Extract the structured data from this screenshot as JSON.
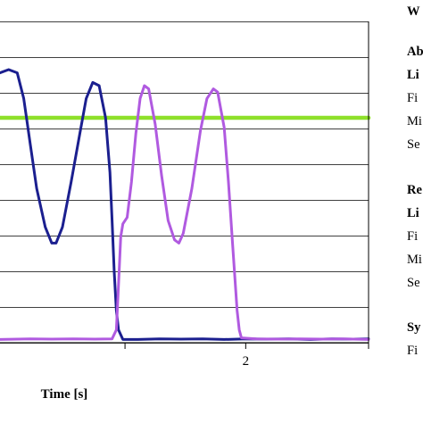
{
  "chart_data": {
    "type": "line",
    "xlabel": "Time [s]",
    "ylabel": "",
    "x_ticks": [
      {
        "label": "2",
        "value": 2
      }
    ],
    "xlim": [
      0.86,
      2.57
    ],
    "ylim": [
      0,
      1.0
    ],
    "grid": true,
    "colors": {
      "series_a": "#1b1f8f",
      "series_b": "#b05ae0",
      "threshold": "#8ee02a",
      "grid": "#000000"
    },
    "series": [
      {
        "color": "#1b1f8f",
        "points": [
          [
            0.86,
            0.84
          ],
          [
            0.9,
            0.85
          ],
          [
            0.94,
            0.84
          ],
          [
            0.97,
            0.76
          ],
          [
            1.0,
            0.62
          ],
          [
            1.03,
            0.48
          ],
          [
            1.07,
            0.36
          ],
          [
            1.1,
            0.31
          ],
          [
            1.12,
            0.31
          ],
          [
            1.15,
            0.36
          ],
          [
            1.19,
            0.5
          ],
          [
            1.23,
            0.65
          ],
          [
            1.26,
            0.76
          ],
          [
            1.29,
            0.81
          ],
          [
            1.32,
            0.8
          ],
          [
            1.35,
            0.7
          ],
          [
            1.37,
            0.53
          ],
          [
            1.38,
            0.38
          ],
          [
            1.39,
            0.22
          ],
          [
            1.4,
            0.1
          ],
          [
            1.41,
            0.04
          ],
          [
            1.43,
            0.01
          ],
          [
            1.5,
            0.01
          ],
          [
            1.6,
            0.012
          ],
          [
            1.7,
            0.011
          ],
          [
            1.8,
            0.012
          ],
          [
            1.9,
            0.01
          ],
          [
            2.0,
            0.012
          ],
          [
            2.1,
            0.011
          ],
          [
            2.2,
            0.012
          ],
          [
            2.3,
            0.01
          ],
          [
            2.4,
            0.012
          ],
          [
            2.5,
            0.011
          ],
          [
            2.57,
            0.012
          ]
        ]
      },
      {
        "color": "#b05ae0",
        "points": [
          [
            0.86,
            0.01
          ],
          [
            1.0,
            0.012
          ],
          [
            1.1,
            0.011
          ],
          [
            1.2,
            0.012
          ],
          [
            1.3,
            0.011
          ],
          [
            1.38,
            0.012
          ],
          [
            1.4,
            0.04
          ],
          [
            1.41,
            0.18
          ],
          [
            1.42,
            0.33
          ],
          [
            1.43,
            0.37
          ],
          [
            1.45,
            0.39
          ],
          [
            1.47,
            0.5
          ],
          [
            1.49,
            0.65
          ],
          [
            1.51,
            0.76
          ],
          [
            1.53,
            0.8
          ],
          [
            1.55,
            0.79
          ],
          [
            1.58,
            0.68
          ],
          [
            1.61,
            0.52
          ],
          [
            1.64,
            0.38
          ],
          [
            1.67,
            0.32
          ],
          [
            1.69,
            0.31
          ],
          [
            1.71,
            0.34
          ],
          [
            1.75,
            0.48
          ],
          [
            1.79,
            0.66
          ],
          [
            1.82,
            0.76
          ],
          [
            1.85,
            0.79
          ],
          [
            1.87,
            0.78
          ],
          [
            1.9,
            0.67
          ],
          [
            1.92,
            0.5
          ],
          [
            1.94,
            0.3
          ],
          [
            1.96,
            0.1
          ],
          [
            1.97,
            0.04
          ],
          [
            1.98,
            0.015
          ],
          [
            2.05,
            0.012
          ],
          [
            2.15,
            0.011
          ],
          [
            2.25,
            0.012
          ],
          [
            2.35,
            0.011
          ],
          [
            2.45,
            0.012
          ],
          [
            2.57,
            0.01
          ]
        ]
      },
      {
        "color": "#8ee02a",
        "points": [
          [
            0.86,
            0.7
          ],
          [
            2.57,
            0.7
          ]
        ]
      }
    ]
  },
  "legend_panel": {
    "line1": "W",
    "line2": "Ab",
    "line3": "Li",
    "line4": "Fi",
    "line5": "Mi",
    "line6": "Se",
    "line7": "Re",
    "line8": "Li",
    "line9": "Fi",
    "line10": "Mi",
    "line11": "Se",
    "line12": "Sy",
    "line13": "Fi"
  }
}
